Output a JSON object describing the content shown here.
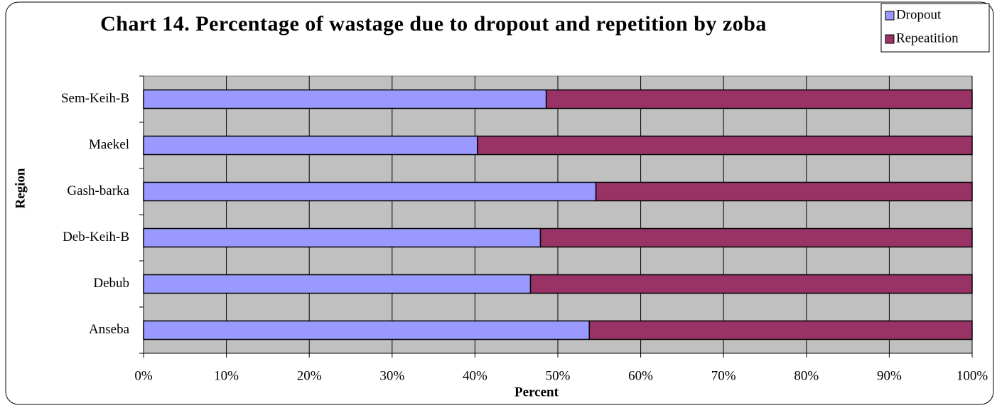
{
  "chart_data": {
    "type": "stacked-bar-horizontal",
    "title": "Chart 14. Percentage of wastage due to dropout and repetition by zoba",
    "x_label": "Percent",
    "y_label": "Region",
    "categories": [
      "Anseba",
      "Debub",
      "Deb-Keih-B",
      "Gash-barka",
      "Maekel",
      "Sem-Keih-B"
    ],
    "series": [
      {
        "name": "Dropout",
        "color": "#9999ff",
        "values": [
          53.8,
          46.7,
          47.9,
          54.6,
          40.3,
          48.6
        ]
      },
      {
        "name": "Repeatition",
        "color": "#993366",
        "values": [
          46.2,
          53.3,
          52.1,
          45.4,
          59.7,
          51.4
        ]
      }
    ],
    "xlim": [
      0,
      100
    ],
    "xticks": [
      {
        "value": 0,
        "label": "0%"
      },
      {
        "value": 10,
        "label": "10%"
      },
      {
        "value": 20,
        "label": "20%"
      },
      {
        "value": 30,
        "label": "30%"
      },
      {
        "value": 40,
        "label": "40%"
      },
      {
        "value": 50,
        "label": "50%"
      },
      {
        "value": 60,
        "label": "60%"
      },
      {
        "value": 70,
        "label": "70%"
      },
      {
        "value": 80,
        "label": "80%"
      },
      {
        "value": 90,
        "label": "90%"
      },
      {
        "value": 100,
        "label": "100%"
      }
    ],
    "grid": true,
    "legend": "top-right",
    "plot_background": "#c0c0c0"
  }
}
